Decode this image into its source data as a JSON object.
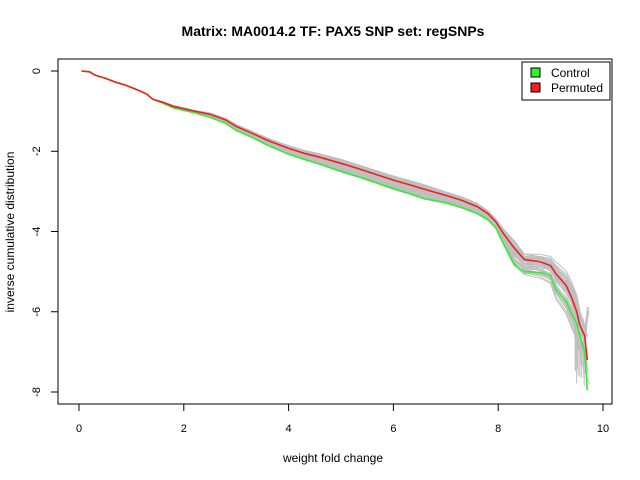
{
  "chart_data": {
    "type": "line",
    "title": "Matrix: MA0014.2 TF: PAX5 SNP set: regSNPs",
    "xlabel": "weight fold change",
    "ylabel": "inverse cumulative distribution",
    "xlim": [
      0,
      10
    ],
    "ylim": [
      -8,
      0
    ],
    "x_ticks": [
      0,
      2,
      4,
      6,
      8,
      10
    ],
    "y_ticks": [
      0,
      -2,
      -4,
      -6,
      -8
    ],
    "grid": false,
    "legend": {
      "position": "top-right",
      "entries": [
        {
          "label": "Control",
          "color": "#33ee33"
        },
        {
          "label": "Permuted",
          "color": "#ee2222"
        }
      ]
    },
    "background_series": {
      "description": "grey permutation curves",
      "color": "#bfbfbf",
      "count": 40
    },
    "series": [
      {
        "name": "Control",
        "color": "#33ee33",
        "x": [
          0.05,
          0.2,
          0.3,
          0.5,
          0.7,
          0.9,
          1.1,
          1.3,
          1.4,
          1.6,
          1.8,
          2.0,
          2.2,
          2.5,
          2.8,
          3.0,
          3.3,
          3.6,
          4.0,
          4.3,
          4.6,
          5.0,
          5.3,
          5.6,
          6.0,
          6.3,
          6.6,
          7.0,
          7.3,
          7.6,
          7.8,
          7.95,
          8.1,
          8.3,
          8.5,
          8.8,
          9.0,
          9.1,
          9.2,
          9.3,
          9.4,
          9.5,
          9.55,
          9.65,
          9.7
        ],
        "y": [
          0.0,
          -0.02,
          -0.1,
          -0.18,
          -0.28,
          -0.36,
          -0.46,
          -0.58,
          -0.7,
          -0.8,
          -0.92,
          -0.98,
          -1.04,
          -1.15,
          -1.3,
          -1.48,
          -1.65,
          -1.85,
          -2.07,
          -2.2,
          -2.32,
          -2.5,
          -2.62,
          -2.75,
          -2.93,
          -3.05,
          -3.18,
          -3.28,
          -3.4,
          -3.55,
          -3.7,
          -3.9,
          -4.3,
          -4.8,
          -5.0,
          -5.02,
          -5.1,
          -5.45,
          -5.6,
          -5.75,
          -6.05,
          -6.3,
          -6.55,
          -7.0,
          -7.95
        ]
      },
      {
        "name": "Permuted",
        "color": "#ee2222",
        "x": [
          0.05,
          0.2,
          0.3,
          0.5,
          0.7,
          0.9,
          1.1,
          1.3,
          1.4,
          1.6,
          1.8,
          2.0,
          2.2,
          2.5,
          2.8,
          3.0,
          3.3,
          3.6,
          4.0,
          4.3,
          4.6,
          5.0,
          5.3,
          5.6,
          6.0,
          6.3,
          6.6,
          7.0,
          7.3,
          7.6,
          7.8,
          7.95,
          8.1,
          8.3,
          8.5,
          8.8,
          9.0,
          9.1,
          9.2,
          9.3,
          9.4,
          9.5,
          9.55,
          9.65,
          9.7
        ],
        "y": [
          0.0,
          -0.02,
          -0.1,
          -0.18,
          -0.28,
          -0.36,
          -0.46,
          -0.58,
          -0.7,
          -0.78,
          -0.88,
          -0.94,
          -1.0,
          -1.08,
          -1.22,
          -1.38,
          -1.55,
          -1.73,
          -1.93,
          -2.05,
          -2.15,
          -2.3,
          -2.42,
          -2.55,
          -2.72,
          -2.83,
          -2.95,
          -3.1,
          -3.22,
          -3.38,
          -3.55,
          -3.75,
          -4.05,
          -4.4,
          -4.7,
          -4.75,
          -4.85,
          -5.05,
          -5.2,
          -5.35,
          -5.65,
          -6.0,
          -6.3,
          -6.6,
          -7.2
        ]
      }
    ]
  }
}
